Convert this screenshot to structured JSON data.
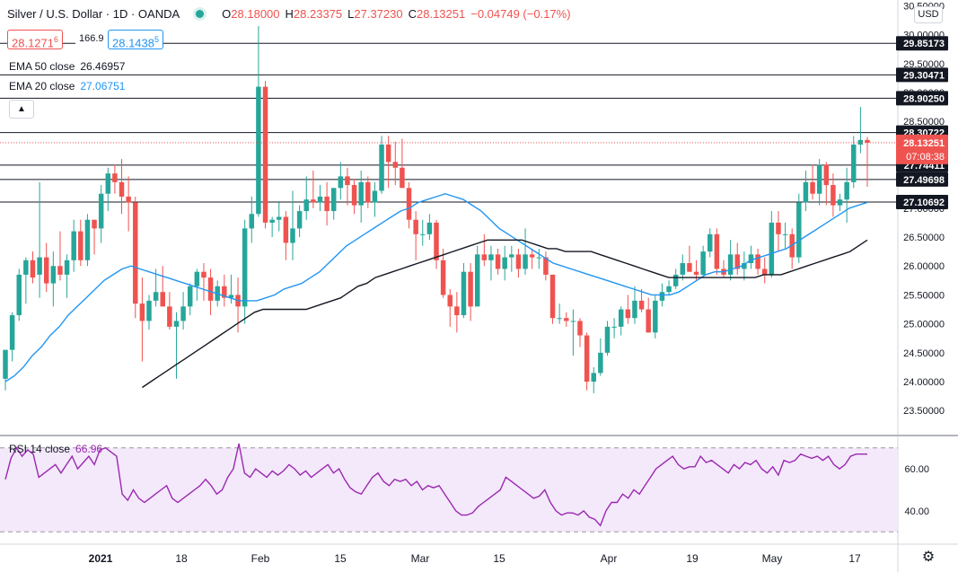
{
  "header": {
    "symbol_title": "Silver / U.S. Dollar · 1D · OANDA",
    "open_label": "O",
    "open": "28.18000",
    "high_label": "H",
    "high": "28.23375",
    "low_label": "L",
    "low": "27.37230",
    "close_label": "C",
    "close": "28.13251",
    "change": "−0.04749 (−0.17%)",
    "bid": "28.1271",
    "bid_sup": "6",
    "spread": "166.9",
    "ask": "28.1438",
    "ask_sup": "5"
  },
  "indicators": {
    "ema50_label": "EMA 50 close",
    "ema50_value": "26.46957",
    "ema20_label": "EMA 20 close",
    "ema20_value": "27.06751",
    "rsi_label": "RSI 14 close",
    "rsi_value": "66.96",
    "collapse_icon": "chevron-up-icon"
  },
  "currency_label": "USD",
  "colors": {
    "up": "#26a69a",
    "down": "#ef5350",
    "ema20": "#2196f3",
    "ema50": "#131722",
    "rsi": "#9c27b0",
    "rsi_band": "#f3e9fb",
    "price_tag": "#ef5350"
  },
  "chart_data": {
    "type": "candlestick",
    "x_tick_labels": [
      "2021",
      "18",
      "Feb",
      "15",
      "Mar",
      "15",
      "Apr",
      "19",
      "May",
      "17"
    ],
    "y_tick_labels": [
      "23.50000",
      "24.00000",
      "24.50000",
      "25.00000",
      "25.50000",
      "26.00000",
      "26.50000",
      "27.00000",
      "27.50000",
      "28.00000",
      "28.50000",
      "29.00000",
      "29.50000",
      "30.00000",
      "30.50000"
    ],
    "ylim": [
      23.1,
      30.6
    ],
    "horizontal_levels": [
      29.85173,
      29.30471,
      28.9025,
      28.30722,
      27.74411,
      27.49698,
      27.10692
    ],
    "level_labels": [
      "29.85173",
      "29.30471",
      "28.90250",
      "28.30722",
      "27.74411",
      "27.49698",
      "27.10692"
    ],
    "last_price_label": "28.13251",
    "countdown_label": "07:08:38",
    "last_price": 28.13251,
    "candles": [
      [
        24.05,
        24.55,
        23.85,
        24.55
      ],
      [
        24.55,
        25.2,
        24.35,
        25.15
      ],
      [
        25.15,
        25.95,
        25.05,
        25.85
      ],
      [
        25.85,
        26.15,
        25.35,
        26.1
      ],
      [
        26.1,
        26.25,
        25.7,
        25.8
      ],
      [
        25.85,
        27.45,
        25.45,
        26.15
      ],
      [
        26.15,
        26.4,
        25.55,
        25.7
      ],
      [
        25.7,
        26.25,
        25.3,
        26.0
      ],
      [
        26.0,
        26.6,
        25.75,
        25.85
      ],
      [
        25.85,
        26.2,
        25.45,
        26.1
      ],
      [
        26.1,
        26.8,
        25.9,
        26.6
      ],
      [
        26.6,
        26.8,
        26.0,
        26.1
      ],
      [
        26.1,
        26.9,
        26.0,
        26.8
      ],
      [
        26.8,
        26.8,
        26.2,
        26.65
      ],
      [
        26.65,
        27.4,
        26.4,
        27.25
      ],
      [
        27.25,
        27.7,
        26.95,
        27.6
      ],
      [
        27.6,
        27.75,
        27.25,
        27.45
      ],
      [
        27.45,
        27.85,
        26.9,
        27.2
      ],
      [
        27.2,
        27.55,
        26.6,
        27.1
      ],
      [
        27.1,
        27.2,
        25.1,
        25.35
      ],
      [
        25.35,
        25.8,
        24.35,
        25.05
      ],
      [
        25.05,
        25.5,
        24.9,
        25.4
      ],
      [
        25.4,
        25.95,
        25.3,
        25.55
      ],
      [
        25.55,
        26.0,
        25.3,
        25.3
      ],
      [
        25.3,
        25.55,
        24.9,
        24.95
      ],
      [
        24.95,
        25.2,
        24.05,
        25.05
      ],
      [
        25.05,
        25.55,
        24.9,
        25.3
      ],
      [
        25.3,
        25.7,
        25.15,
        25.65
      ],
      [
        25.65,
        25.95,
        25.4,
        25.9
      ],
      [
        25.9,
        26.05,
        25.4,
        25.8
      ],
      [
        25.8,
        25.95,
        25.15,
        25.4
      ],
      [
        25.4,
        25.75,
        25.3,
        25.65
      ],
      [
        25.65,
        25.85,
        25.3,
        25.45
      ],
      [
        25.45,
        25.85,
        25.35,
        25.5
      ],
      [
        25.5,
        25.8,
        24.85,
        25.3
      ],
      [
        25.3,
        26.8,
        25.0,
        26.65
      ],
      [
        26.65,
        27.2,
        26.4,
        26.9
      ],
      [
        26.9,
        30.15,
        26.85,
        29.1
      ],
      [
        29.1,
        29.2,
        26.65,
        26.75
      ],
      [
        26.75,
        26.85,
        26.5,
        26.8
      ],
      [
        26.8,
        27.1,
        26.6,
        26.85
      ],
      [
        26.85,
        26.95,
        26.1,
        26.4
      ],
      [
        26.4,
        27.3,
        26.1,
        26.65
      ],
      [
        26.65,
        27.05,
        26.5,
        26.95
      ],
      [
        26.95,
        27.55,
        26.8,
        27.15
      ],
      [
        27.15,
        27.65,
        27.0,
        27.1
      ],
      [
        27.1,
        27.4,
        26.95,
        27.2
      ],
      [
        27.2,
        27.45,
        26.7,
        26.95
      ],
      [
        26.95,
        27.3,
        26.8,
        27.35
      ],
      [
        27.35,
        27.8,
        27.15,
        27.55
      ],
      [
        27.55,
        27.7,
        27.05,
        27.4
      ],
      [
        27.4,
        27.5,
        26.9,
        27.05
      ],
      [
        27.05,
        27.65,
        26.75,
        27.45
      ],
      [
        27.45,
        27.55,
        27.0,
        27.1
      ],
      [
        27.1,
        27.45,
        26.85,
        27.3
      ],
      [
        27.3,
        28.25,
        27.25,
        28.1
      ],
      [
        28.1,
        28.25,
        27.35,
        27.8
      ],
      [
        27.8,
        28.15,
        27.4,
        27.7
      ],
      [
        27.7,
        28.2,
        27.35,
        27.35
      ],
      [
        27.35,
        27.45,
        26.65,
        26.8
      ],
      [
        26.8,
        26.95,
        26.1,
        26.55
      ],
      [
        26.55,
        26.8,
        26.35,
        26.55
      ],
      [
        26.55,
        26.9,
        26.45,
        26.75
      ],
      [
        26.75,
        26.8,
        25.95,
        26.1
      ],
      [
        26.1,
        26.3,
        25.45,
        25.5
      ],
      [
        25.5,
        25.6,
        24.95,
        25.3
      ],
      [
        25.3,
        25.55,
        24.85,
        25.15
      ],
      [
        25.15,
        26.05,
        25.1,
        25.9
      ],
      [
        25.9,
        26.05,
        25.05,
        25.3
      ],
      [
        25.3,
        26.35,
        25.35,
        26.2
      ],
      [
        26.2,
        26.55,
        26.0,
        26.1
      ],
      [
        26.1,
        26.35,
        25.75,
        26.2
      ],
      [
        26.2,
        26.3,
        25.85,
        25.95
      ],
      [
        25.95,
        26.35,
        25.75,
        26.15
      ],
      [
        26.15,
        26.35,
        25.9,
        26.2
      ],
      [
        26.2,
        26.3,
        25.8,
        25.95
      ],
      [
        25.95,
        26.65,
        25.85,
        26.2
      ],
      [
        26.2,
        26.3,
        25.95,
        26.15
      ],
      [
        26.15,
        26.3,
        25.95,
        26.15
      ],
      [
        26.15,
        26.25,
        25.75,
        25.85
      ],
      [
        25.85,
        25.85,
        25.0,
        25.1
      ],
      [
        25.1,
        25.35,
        25.0,
        25.1
      ],
      [
        25.1,
        25.2,
        24.95,
        25.05
      ],
      [
        25.05,
        25.25,
        24.45,
        25.05
      ],
      [
        25.05,
        25.1,
        24.6,
        24.8
      ],
      [
        24.8,
        24.85,
        23.85,
        24.0
      ],
      [
        24.0,
        24.25,
        23.8,
        24.15
      ],
      [
        24.15,
        24.75,
        24.1,
        24.5
      ],
      [
        24.5,
        25.05,
        24.45,
        24.95
      ],
      [
        24.95,
        25.1,
        24.75,
        24.95
      ],
      [
        24.95,
        25.3,
        24.8,
        25.25
      ],
      [
        25.25,
        25.5,
        25.0,
        25.1
      ],
      [
        25.1,
        25.65,
        25.0,
        25.4
      ],
      [
        25.4,
        25.6,
        25.2,
        25.25
      ],
      [
        25.25,
        25.45,
        24.85,
        24.85
      ],
      [
        24.85,
        25.5,
        24.75,
        25.4
      ],
      [
        25.4,
        25.7,
        25.3,
        25.55
      ],
      [
        25.55,
        25.75,
        25.5,
        25.65
      ],
      [
        25.65,
        25.95,
        25.6,
        25.85
      ],
      [
        25.85,
        26.2,
        25.75,
        26.05
      ],
      [
        26.05,
        26.35,
        25.9,
        25.9
      ],
      [
        25.9,
        26.1,
        25.75,
        25.85
      ],
      [
        25.85,
        26.35,
        25.8,
        26.25
      ],
      [
        26.25,
        26.65,
        26.15,
        26.55
      ],
      [
        26.55,
        26.65,
        25.85,
        25.95
      ],
      [
        25.95,
        26.1,
        25.8,
        25.85
      ],
      [
        25.85,
        26.45,
        25.75,
        26.2
      ],
      [
        26.2,
        26.4,
        25.85,
        25.95
      ],
      [
        25.95,
        26.25,
        25.75,
        26.05
      ],
      [
        26.05,
        26.35,
        25.95,
        26.2
      ],
      [
        26.2,
        26.3,
        25.85,
        25.95
      ],
      [
        25.95,
        26.15,
        25.7,
        25.85
      ],
      [
        25.85,
        26.95,
        25.8,
        26.75
      ],
      [
        26.75,
        26.95,
        26.25,
        26.55
      ],
      [
        26.55,
        26.75,
        26.3,
        26.55
      ],
      [
        26.55,
        26.65,
        25.95,
        26.15
      ],
      [
        26.15,
        27.25,
        26.05,
        27.1
      ],
      [
        27.1,
        27.65,
        26.95,
        27.45
      ],
      [
        27.45,
        27.75,
        27.15,
        27.25
      ],
      [
        27.25,
        27.85,
        27.05,
        27.75
      ],
      [
        27.75,
        27.8,
        27.05,
        27.4
      ],
      [
        27.4,
        27.6,
        26.85,
        27.05
      ],
      [
        27.05,
        27.25,
        26.95,
        27.15
      ],
      [
        27.15,
        27.7,
        26.75,
        27.45
      ],
      [
        27.45,
        28.25,
        27.35,
        28.1
      ],
      [
        28.1,
        28.75,
        27.95,
        28.18
      ],
      [
        28.18,
        28.23,
        27.37,
        28.13
      ]
    ],
    "ema20": [
      24.0,
      24.1,
      24.25,
      24.45,
      24.6,
      24.8,
      24.95,
      25.15,
      25.3,
      25.45,
      25.6,
      25.75,
      25.85,
      25.95,
      26.0,
      25.95,
      25.9,
      25.85,
      25.8,
      25.75,
      25.7,
      25.65,
      25.6,
      25.55,
      25.5,
      25.45,
      25.4,
      25.4,
      25.4,
      25.45,
      25.5,
      25.6,
      25.65,
      25.7,
      25.8,
      25.9,
      26.05,
      26.2,
      26.35,
      26.45,
      26.55,
      26.65,
      26.75,
      26.85,
      26.95,
      27.0,
      27.1,
      27.15,
      27.2,
      27.25,
      27.2,
      27.15,
      27.05,
      26.95,
      26.8,
      26.65,
      26.55,
      26.45,
      26.35,
      26.25,
      26.15,
      26.05,
      26.0,
      25.95,
      25.9,
      25.85,
      25.8,
      25.75,
      25.7,
      25.65,
      25.6,
      25.55,
      25.5,
      25.5,
      25.5,
      25.55,
      25.65,
      25.75,
      25.85,
      25.9,
      25.9,
      25.95,
      26.0,
      26.1,
      26.15,
      26.2,
      26.25,
      26.3,
      26.4,
      26.5,
      26.6,
      26.7,
      26.8,
      26.9,
      27.0,
      27.05,
      27.1
    ],
    "ema50": [
      23.9,
      24.0,
      24.1,
      24.2,
      24.3,
      24.4,
      24.5,
      24.6,
      24.7,
      24.8,
      24.9,
      25.0,
      25.1,
      25.2,
      25.25,
      25.25,
      25.25,
      25.25,
      25.25,
      25.25,
      25.3,
      25.35,
      25.4,
      25.45,
      25.55,
      25.65,
      25.7,
      25.8,
      25.85,
      25.9,
      25.95,
      26.0,
      26.05,
      26.1,
      26.15,
      26.2,
      26.25,
      26.3,
      26.35,
      26.4,
      26.45,
      26.45,
      26.45,
      26.45,
      26.45,
      26.4,
      26.35,
      26.3,
      26.3,
      26.25,
      26.25,
      26.25,
      26.25,
      26.2,
      26.15,
      26.1,
      26.05,
      26.0,
      25.95,
      25.9,
      25.85,
      25.8,
      25.8,
      25.8,
      25.8,
      25.8,
      25.8,
      25.8,
      25.8,
      25.8,
      25.8,
      25.8,
      25.85,
      25.85,
      25.85,
      25.9,
      25.95,
      26.0,
      26.05,
      26.1,
      26.15,
      26.2,
      26.25,
      26.35,
      26.45
    ],
    "rsi": [
      55,
      65,
      70,
      66,
      69,
      67,
      56,
      58,
      60,
      62,
      58,
      62,
      66,
      60,
      63,
      66,
      62,
      69,
      70,
      68,
      66,
      48,
      45,
      50,
      46,
      44,
      46,
      48,
      50,
      52,
      46,
      44,
      46,
      48,
      50,
      52,
      55,
      52,
      48,
      50,
      56,
      60,
      72,
      58,
      56,
      60,
      58,
      56,
      59,
      57,
      59,
      62,
      60,
      57,
      59,
      56,
      58,
      60,
      62,
      58,
      60,
      55,
      51,
      49,
      48,
      52,
      56,
      58,
      54,
      52,
      55,
      54,
      55,
      52,
      54,
      50,
      52,
      51,
      52,
      48,
      44,
      40,
      38,
      38,
      39,
      42,
      44,
      46,
      48,
      50,
      56,
      54,
      52,
      50,
      48,
      46,
      47,
      50,
      44,
      40,
      38,
      39,
      39,
      38,
      40,
      37,
      36,
      33,
      40,
      44,
      44,
      48,
      46,
      50,
      48,
      52,
      56,
      60,
      62,
      64,
      66,
      62,
      60,
      61,
      61,
      66,
      63,
      64,
      62,
      60,
      58,
      62,
      60,
      63,
      62,
      64,
      60,
      58,
      61,
      57,
      64,
      63,
      64,
      67,
      66,
      65,
      66,
      64,
      66,
      62,
      60,
      62,
      66,
      67,
      67,
      67
    ]
  }
}
